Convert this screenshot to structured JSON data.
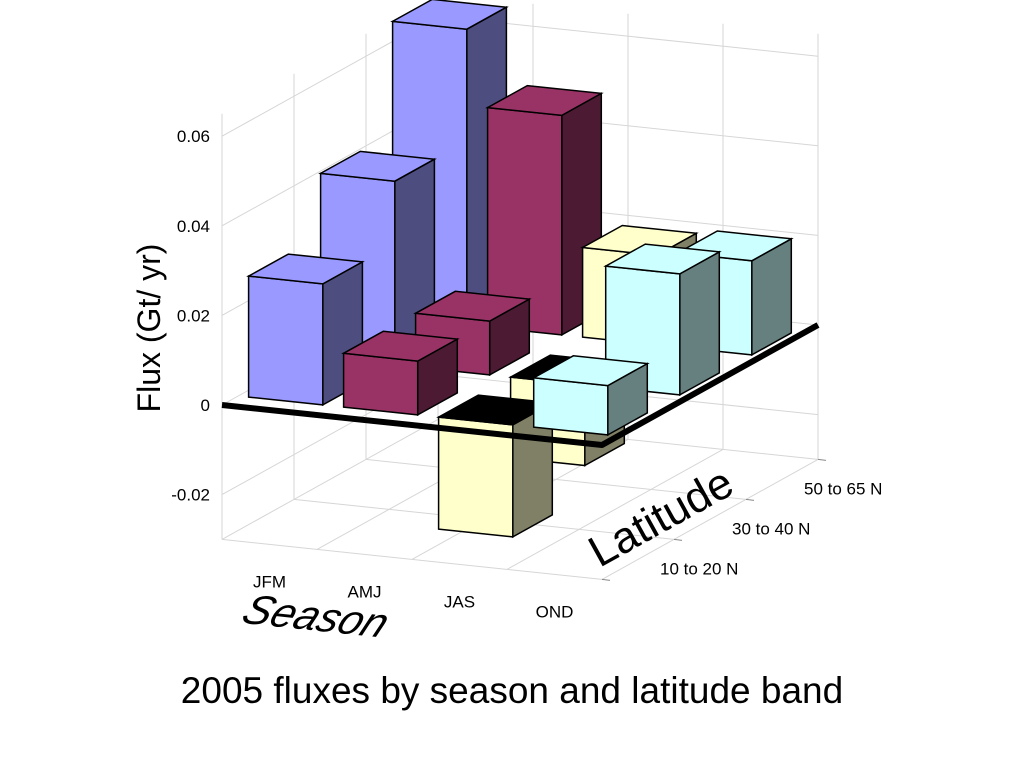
{
  "chart_data": {
    "type": "bar",
    "title": "2005 fluxes by season and latitude band",
    "ylabel": "Flux (Gt/  yr)",
    "xlabel": "Season",
    "zlabel": "Latitude",
    "categories": [
      "JFM",
      "AMJ",
      "JAS",
      "OND"
    ],
    "ylim": [
      -0.03,
      0.065
    ],
    "yticks": [
      {
        "label": "0.06",
        "value": 0.06
      },
      {
        "label": "0.04",
        "value": 0.04
      },
      {
        "label": "0.02",
        "value": 0.02
      },
      {
        "label": "0",
        "value": 0
      },
      {
        "label": "-0.02",
        "value": -0.02
      }
    ],
    "grid": true,
    "series": [
      {
        "name": "10 to 20 N",
        "values": [
          0.027,
          0.012,
          -0.025,
          0.011
        ]
      },
      {
        "name": "30 to 40 N",
        "values": [
          0.041,
          0.012,
          -0.018,
          0.027
        ]
      },
      {
        "name": "50 to 65 N",
        "values": [
          0.066,
          0.049,
          0.02,
          0.021
        ]
      }
    ],
    "colors": {
      "JFM": "#9999ff",
      "AMJ": "#993366",
      "JAS": "#ffffcc",
      "OND": "#ccffff"
    }
  }
}
